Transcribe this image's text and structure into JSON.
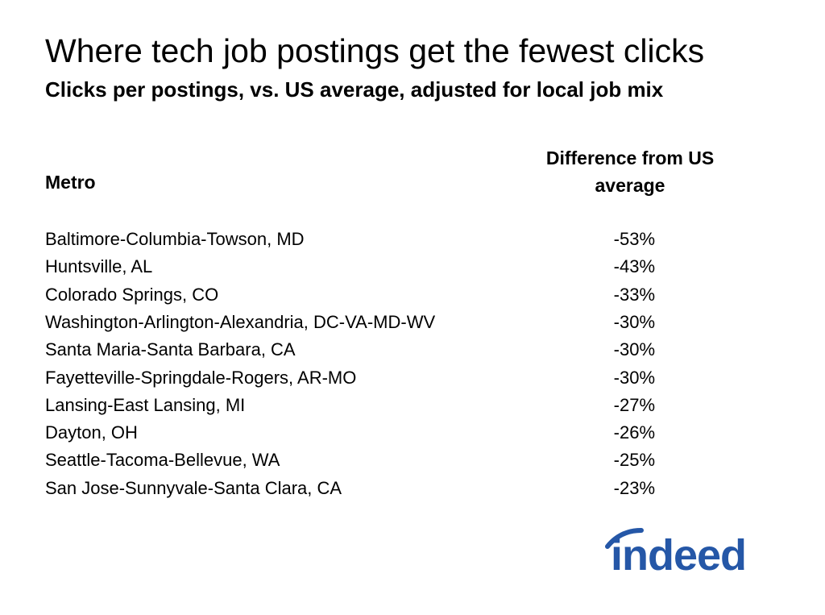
{
  "header": {
    "title": "Where tech job postings get the fewest clicks",
    "subtitle": "Clicks per postings, vs. US average, adjusted for local job mix"
  },
  "table": {
    "columns": [
      "Metro",
      "Difference from US average"
    ],
    "rows": [
      [
        "Baltimore-Columbia-Towson, MD",
        "-53%"
      ],
      [
        "Huntsville, AL",
        "-43%"
      ],
      [
        "Colorado Springs, CO",
        "-33%"
      ],
      [
        "Washington-Arlington-Alexandria, DC-VA-MD-WV",
        "-30%"
      ],
      [
        "Santa Maria-Santa Barbara, CA",
        "-30%"
      ],
      [
        "Fayetteville-Springdale-Rogers, AR-MO",
        "-30%"
      ],
      [
        "Lansing-East Lansing, MI",
        "-27%"
      ],
      [
        "Dayton, OH",
        "-26%"
      ],
      [
        "Seattle-Tacoma-Bellevue, WA",
        "-25%"
      ],
      [
        "San Jose-Sunnyvale-Santa Clara, CA",
        "-23%"
      ]
    ]
  },
  "logo": {
    "text": "indeed"
  }
}
